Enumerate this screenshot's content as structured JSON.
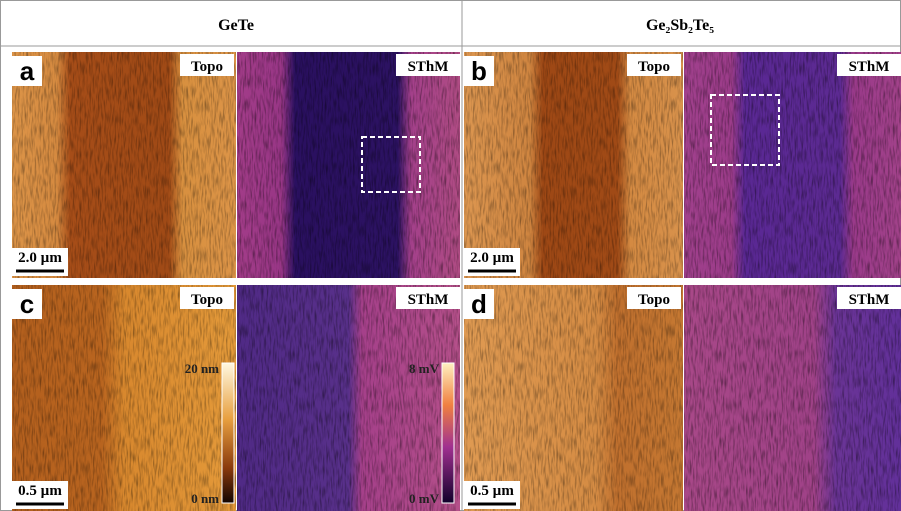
{
  "header": {
    "columns": [
      "GeTe",
      "Ge₂Sb₂Te₅"
    ]
  },
  "panels": [
    {
      "label": "a",
      "topo_label": "Topo",
      "sthm_label": "SThM",
      "scale_bar": "2.0 µm"
    },
    {
      "label": "b",
      "topo_label": "Topo",
      "sthm_label": "SThM",
      "scale_bar": "2.0 µm"
    },
    {
      "label": "c",
      "topo_label": "Topo",
      "sthm_label": "SThM",
      "scale_bar": "0.5 µm",
      "colorbars": {
        "topo": {
          "max": "20 nm",
          "min": "0 nm"
        },
        "sthm": {
          "max": "8 mV",
          "min": "0 mV"
        }
      }
    },
    {
      "label": "d",
      "topo_label": "Topo",
      "sthm_label": "SThM",
      "scale_bar": "0.5 µm"
    }
  ]
}
